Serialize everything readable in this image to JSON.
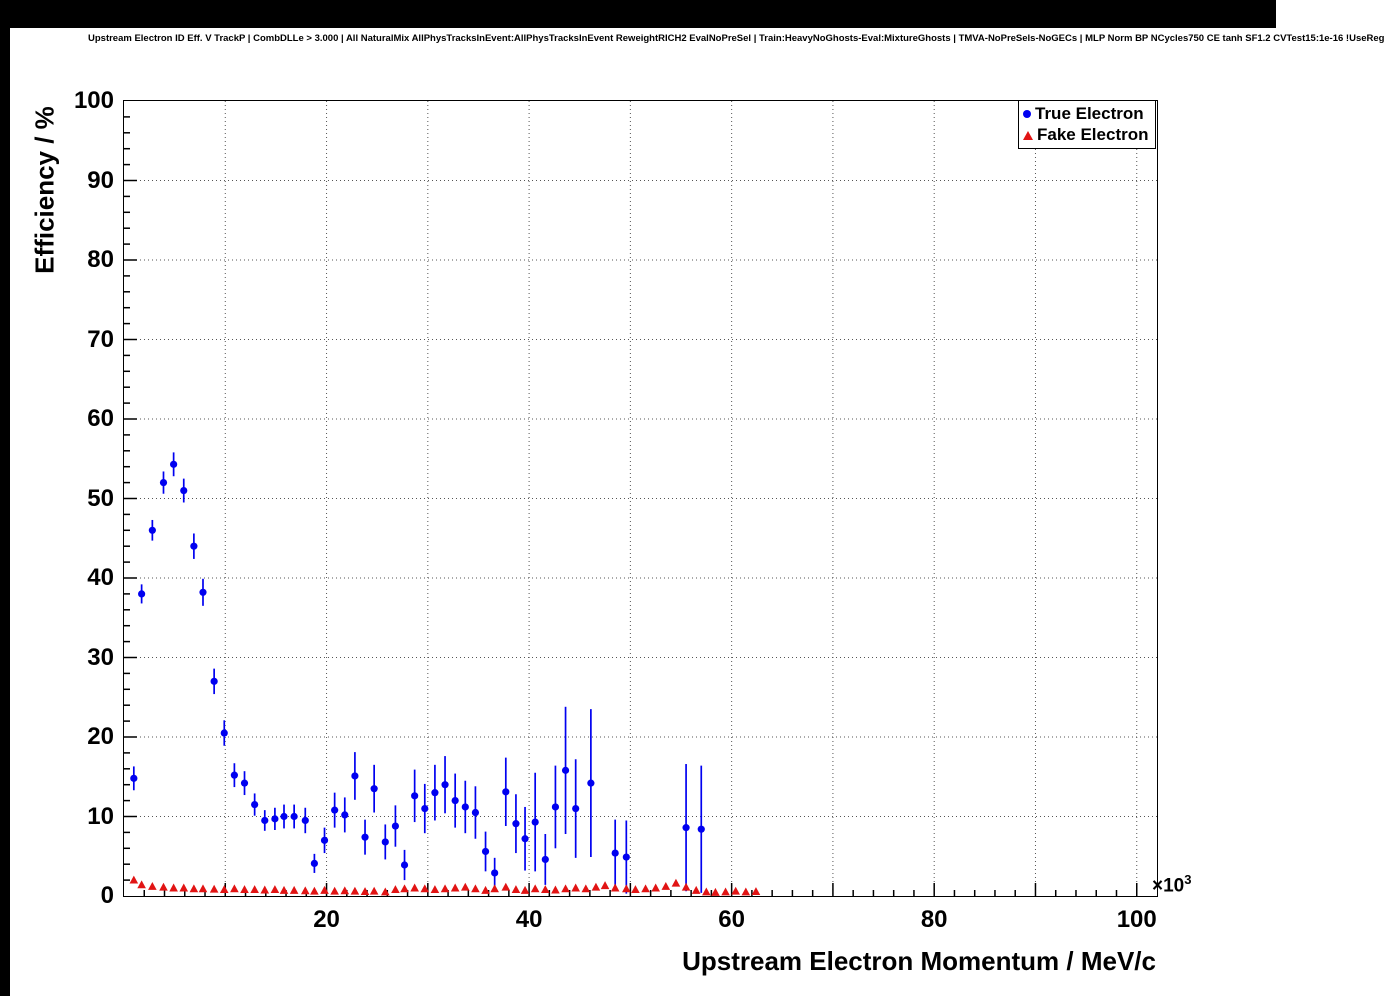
{
  "header": {
    "title": "Upstream Electron ID Eff. V TrackP | CombDLLe > 3.000 | All NaturalMix AllPhysTracksInEvent:AllPhysTracksInEvent ReweightRICH2 EvalNoPreSel | Train:HeavyNoGhosts-Eval:MixtureGhosts | TMVA-NoPreSels-NoGECs | MLP Norm BP NCycles750 CE tanh SF1.2 CVTest15:1e-16 !UseReg"
  },
  "chart_data": {
    "type": "scatter",
    "title": "Upstream Electron ID Eff. V TrackP",
    "xlabel": "Upstream Electron Momentum / MeV/c",
    "ylabel": "Efficiency / %",
    "x_multiplier": {
      "base": "×10",
      "exp": "3"
    },
    "xlim": [
      0,
      102
    ],
    "ylim": [
      0,
      100
    ],
    "x_ticks": [
      20,
      40,
      60,
      80,
      100
    ],
    "y_ticks": [
      0,
      10,
      20,
      30,
      40,
      50,
      60,
      70,
      80,
      90,
      100
    ],
    "x_grid": [
      10,
      20,
      30,
      40,
      50,
      60,
      70,
      80,
      90,
      100
    ],
    "y_grid": [
      10,
      20,
      30,
      40,
      50,
      60,
      70,
      80,
      90
    ],
    "grid": true,
    "legend_position": "top-right",
    "legend": [
      {
        "label": "True Electron",
        "color": "#0000f0",
        "marker": "circle"
      },
      {
        "label": "Fake Electron",
        "color": "#e11414",
        "marker": "triangle"
      }
    ],
    "series": [
      {
        "name": "True Electron",
        "color": "#0000f0",
        "marker": "circle",
        "points_format": [
          "x_GeV",
          "efficiency_pct",
          "error_pct"
        ],
        "points": [
          [
            0.97,
            14.8,
            1.5
          ],
          [
            1.74,
            38.0,
            1.2
          ],
          [
            2.8,
            46.0,
            1.3
          ],
          [
            3.9,
            52.0,
            1.4
          ],
          [
            4.9,
            54.3,
            1.5
          ],
          [
            5.9,
            51.0,
            1.5
          ],
          [
            6.9,
            44.0,
            1.6
          ],
          [
            7.8,
            38.2,
            1.7
          ],
          [
            8.9,
            27.0,
            1.6
          ],
          [
            9.9,
            20.5,
            1.6
          ],
          [
            10.9,
            15.2,
            1.5
          ],
          [
            11.9,
            14.2,
            1.5
          ],
          [
            12.9,
            11.5,
            1.4
          ],
          [
            13.9,
            9.5,
            1.3
          ],
          [
            14.9,
            9.7,
            1.4
          ],
          [
            15.8,
            10.0,
            1.5
          ],
          [
            16.8,
            10.0,
            1.5
          ],
          [
            17.9,
            9.5,
            1.6
          ],
          [
            18.8,
            4.1,
            1.2
          ],
          [
            19.8,
            7.0,
            1.6
          ],
          [
            20.8,
            10.8,
            2.2
          ],
          [
            21.8,
            10.2,
            2.2
          ],
          [
            22.8,
            15.1,
            3.0
          ],
          [
            23.8,
            7.4,
            2.2
          ],
          [
            24.7,
            13.5,
            3.0
          ],
          [
            25.8,
            6.8,
            2.2
          ],
          [
            26.8,
            8.8,
            2.6
          ],
          [
            27.7,
            3.9,
            1.9
          ],
          [
            28.7,
            12.6,
            3.3
          ],
          [
            29.7,
            11.0,
            3.1
          ],
          [
            30.7,
            13.0,
            3.5
          ],
          [
            31.7,
            14.0,
            3.6
          ],
          [
            32.7,
            12.0,
            3.4
          ],
          [
            33.7,
            11.2,
            3.3
          ],
          [
            34.7,
            10.5,
            3.3
          ],
          [
            35.7,
            5.6,
            2.5
          ],
          [
            36.6,
            2.9,
            1.9
          ],
          [
            37.7,
            13.1,
            4.3
          ],
          [
            38.7,
            9.1,
            3.7
          ],
          [
            39.6,
            7.2,
            4.0
          ],
          [
            40.6,
            9.3,
            6.2
          ],
          [
            41.6,
            4.6,
            3.2
          ],
          [
            42.6,
            11.2,
            5.2
          ],
          [
            43.6,
            15.8,
            8.0
          ],
          [
            44.6,
            11.0,
            6.2
          ],
          [
            46.1,
            14.2,
            9.3
          ],
          [
            48.5,
            5.4,
            4.2
          ],
          [
            49.6,
            4.9,
            4.6
          ],
          [
            55.5,
            8.6,
            8.0
          ],
          [
            57.0,
            8.4,
            8.0
          ]
        ]
      },
      {
        "name": "Fake Electron",
        "color": "#e11414",
        "marker": "triangle",
        "points_format": [
          "x_GeV",
          "efficiency_pct"
        ],
        "points": [
          [
            0.97,
            2.0
          ],
          [
            1.74,
            1.4
          ],
          [
            2.8,
            1.2
          ],
          [
            3.9,
            1.1
          ],
          [
            4.9,
            1.0
          ],
          [
            5.9,
            1.0
          ],
          [
            6.9,
            0.9
          ],
          [
            7.8,
            0.9
          ],
          [
            8.9,
            0.85
          ],
          [
            9.9,
            0.8
          ],
          [
            10.9,
            0.9
          ],
          [
            11.9,
            0.8
          ],
          [
            12.9,
            0.8
          ],
          [
            13.9,
            0.75
          ],
          [
            14.9,
            0.8
          ],
          [
            15.8,
            0.7
          ],
          [
            16.8,
            0.7
          ],
          [
            17.9,
            0.65
          ],
          [
            18.8,
            0.6
          ],
          [
            19.8,
            0.7
          ],
          [
            20.8,
            0.6
          ],
          [
            21.8,
            0.65
          ],
          [
            22.8,
            0.6
          ],
          [
            23.8,
            0.55
          ],
          [
            24.7,
            0.6
          ],
          [
            25.8,
            0.5
          ],
          [
            26.8,
            0.8
          ],
          [
            27.7,
            0.9
          ],
          [
            28.7,
            1.0
          ],
          [
            29.7,
            0.9
          ],
          [
            30.7,
            0.8
          ],
          [
            31.7,
            0.9
          ],
          [
            32.7,
            1.0
          ],
          [
            33.7,
            1.1
          ],
          [
            34.7,
            0.9
          ],
          [
            35.7,
            0.7
          ],
          [
            36.6,
            0.9
          ],
          [
            37.7,
            1.1
          ],
          [
            38.7,
            0.8
          ],
          [
            39.6,
            0.7
          ],
          [
            40.6,
            0.9
          ],
          [
            41.6,
            0.8
          ],
          [
            42.6,
            0.75
          ],
          [
            43.6,
            0.9
          ],
          [
            44.6,
            1.0
          ],
          [
            45.6,
            0.9
          ],
          [
            46.6,
            1.1
          ],
          [
            47.5,
            1.3
          ],
          [
            48.5,
            1.0
          ],
          [
            49.6,
            0.9
          ],
          [
            50.5,
            0.8
          ],
          [
            51.5,
            0.9
          ],
          [
            52.5,
            1.0
          ],
          [
            53.5,
            1.2
          ],
          [
            54.5,
            1.6
          ],
          [
            55.5,
            1.1
          ],
          [
            56.5,
            0.7
          ],
          [
            57.5,
            0.5
          ],
          [
            58.4,
            0.45
          ],
          [
            59.4,
            0.5
          ],
          [
            60.4,
            0.6
          ],
          [
            61.4,
            0.5
          ],
          [
            62.4,
            0.55
          ]
        ]
      }
    ]
  }
}
